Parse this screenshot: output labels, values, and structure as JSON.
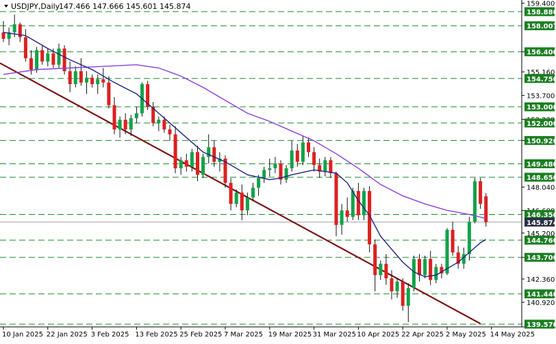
{
  "header": {
    "symbol": "USDJPY,Daily",
    "ohlc": "147.466 147.666 145.601 145.874"
  },
  "colors": {
    "bull": "#11a34a",
    "bear": "#dd2020",
    "wick": "#111111",
    "ma_fast": "#1a237e",
    "ma_slow": "#8a3fd8",
    "trendline": "#7a1414",
    "level_line": "#1a8a2a",
    "label_bg": "#1b7f22",
    "label_text": "#ffffff",
    "current_bg": "#2a2f44"
  },
  "chart_data": {
    "type": "candlestick",
    "y_range": [
      139.4,
      159.6
    ],
    "y_ticks": [
      "159.400",
      "156.400",
      "155.160",
      "153.700",
      "152.220",
      "150.920",
      "148.040",
      "146.600",
      "145.200",
      "143.700",
      "142.360",
      "140.920"
    ],
    "x_labels": [
      "10 Jan 2025",
      "22 Jan 2025",
      "3 Feb 2025",
      "13 Feb 2025",
      "25 Feb 2025",
      "7 Mar 2025",
      "19 Mar 2025",
      "31 Mar 2025",
      "10 Apr 2025",
      "22 Apr 2025",
      "2 May 2025",
      "14 May 2025"
    ],
    "levels": [
      158.88,
      158.007,
      156.4,
      154.75,
      153.0,
      152.0,
      150.92,
      149.48,
      148.65,
      146.35,
      144.76,
      143.7,
      141.44,
      139.57
    ],
    "level_labels": [
      "158.880",
      "158.007",
      "156.400",
      "154.750",
      "153.000",
      "152.000",
      "150.920",
      "149.480",
      "148.650",
      "146.350",
      "144.760",
      "143.700",
      "141.440",
      "139.570"
    ],
    "current_price": 145.874,
    "current_label": "145.874",
    "trendline": [
      [
        0,
        155.7
      ],
      [
        86,
        139.6
      ]
    ],
    "candles": [
      [
        157.6,
        158.3,
        157.0,
        157.2
      ],
      [
        157.2,
        157.9,
        156.8,
        157.6
      ],
      [
        157.6,
        158.7,
        157.3,
        158.1
      ],
      [
        158.1,
        158.2,
        157.0,
        157.3
      ],
      [
        157.3,
        157.8,
        155.8,
        156.0
      ],
      [
        156.0,
        156.5,
        155.0,
        155.3
      ],
      [
        155.3,
        156.7,
        155.1,
        156.5
      ],
      [
        156.5,
        156.8,
        155.6,
        155.8
      ],
      [
        155.8,
        156.6,
        155.5,
        156.3
      ],
      [
        156.3,
        156.6,
        155.4,
        155.6
      ],
      [
        155.6,
        156.9,
        155.4,
        156.6
      ],
      [
        156.6,
        156.8,
        155.0,
        155.2
      ],
      [
        155.2,
        155.8,
        153.9,
        154.4
      ],
      [
        154.4,
        155.5,
        154.2,
        155.2
      ],
      [
        155.2,
        156.0,
        154.3,
        154.5
      ],
      [
        154.5,
        155.2,
        153.8,
        154.8
      ],
      [
        154.8,
        155.0,
        154.2,
        154.4
      ],
      [
        154.4,
        155.0,
        153.8,
        154.7
      ],
      [
        154.7,
        155.4,
        154.2,
        154.5
      ],
      [
        154.5,
        154.9,
        152.9,
        153.1
      ],
      [
        153.1,
        153.6,
        151.3,
        151.6
      ],
      [
        151.6,
        152.4,
        151.1,
        152.2
      ],
      [
        152.2,
        152.6,
        151.3,
        151.6
      ],
      [
        151.6,
        152.5,
        151.2,
        152.3
      ],
      [
        152.3,
        153.0,
        152.0,
        152.6
      ],
      [
        152.6,
        154.5,
        152.4,
        154.4
      ],
      [
        154.4,
        154.6,
        152.8,
        153.0
      ],
      [
        153.0,
        153.3,
        151.8,
        152.0
      ],
      [
        152.0,
        152.4,
        151.5,
        152.2
      ],
      [
        152.2,
        152.4,
        151.4,
        151.6
      ],
      [
        151.6,
        151.9,
        150.9,
        151.3
      ],
      [
        151.3,
        151.8,
        148.9,
        149.2
      ],
      [
        149.2,
        149.9,
        148.8,
        149.7
      ],
      [
        149.7,
        150.1,
        149.0,
        149.3
      ],
      [
        149.3,
        150.4,
        149.0,
        150.2
      ],
      [
        150.2,
        150.6,
        148.4,
        148.8
      ],
      [
        148.8,
        150.1,
        148.6,
        149.9
      ],
      [
        149.9,
        151.3,
        149.5,
        150.5
      ],
      [
        150.5,
        150.9,
        149.3,
        149.6
      ],
      [
        149.6,
        150.2,
        149.0,
        149.8
      ],
      [
        149.8,
        150.0,
        148.0,
        148.3
      ],
      [
        148.3,
        148.6,
        146.6,
        147.0
      ],
      [
        147.0,
        147.9,
        146.8,
        147.7
      ],
      [
        147.7,
        148.2,
        146.0,
        146.6
      ],
      [
        146.6,
        147.7,
        146.3,
        147.4
      ],
      [
        147.4,
        148.3,
        147.2,
        148.0
      ],
      [
        148.0,
        148.8,
        147.5,
        148.6
      ],
      [
        148.6,
        149.3,
        148.3,
        149.1
      ],
      [
        149.1,
        149.8,
        148.7,
        149.2
      ],
      [
        149.2,
        149.9,
        148.9,
        149.5
      ],
      [
        149.5,
        149.7,
        148.2,
        148.5
      ],
      [
        148.5,
        149.4,
        148.3,
        149.2
      ],
      [
        149.2,
        150.9,
        149.0,
        150.3
      ],
      [
        150.3,
        150.7,
        149.3,
        149.6
      ],
      [
        149.6,
        151.2,
        149.4,
        150.8
      ],
      [
        150.8,
        151.1,
        149.9,
        150.2
      ],
      [
        150.2,
        150.5,
        149.0,
        149.4
      ],
      [
        149.4,
        149.8,
        148.6,
        149.0
      ],
      [
        149.0,
        149.9,
        148.7,
        149.7
      ],
      [
        149.7,
        149.9,
        148.6,
        148.9
      ],
      [
        148.9,
        149.0,
        145.0,
        145.7
      ],
      [
        145.7,
        147.0,
        145.1,
        146.6
      ],
      [
        146.6,
        147.4,
        145.9,
        146.2
      ],
      [
        146.2,
        148.0,
        146.0,
        147.8
      ],
      [
        147.8,
        148.3,
        146.0,
        146.3
      ],
      [
        146.3,
        148.0,
        146.0,
        147.8
      ],
      [
        147.8,
        148.1,
        144.0,
        144.5
      ],
      [
        144.5,
        144.8,
        141.6,
        142.6
      ],
      [
        142.6,
        143.5,
        142.3,
        143.3
      ],
      [
        143.3,
        143.9,
        142.0,
        142.4
      ],
      [
        142.4,
        142.9,
        141.1,
        141.6
      ],
      [
        141.6,
        142.4,
        141.2,
        142.2
      ],
      [
        142.2,
        142.4,
        140.4,
        140.7
      ],
      [
        140.7,
        142.1,
        139.7,
        141.8
      ],
      [
        141.8,
        143.8,
        141.6,
        143.6
      ],
      [
        143.6,
        143.9,
        142.2,
        142.6
      ],
      [
        142.6,
        143.8,
        142.4,
        143.6
      ],
      [
        143.6,
        144.1,
        142.0,
        142.3
      ],
      [
        142.3,
        143.3,
        142.1,
        143.1
      ],
      [
        143.1,
        143.3,
        142.4,
        142.7
      ],
      [
        142.7,
        145.5,
        142.6,
        145.4
      ],
      [
        145.4,
        145.9,
        143.8,
        144.0
      ],
      [
        144.0,
        144.4,
        143.0,
        143.3
      ],
      [
        143.3,
        144.3,
        143.0,
        143.9
      ],
      [
        143.9,
        146.2,
        143.5,
        145.9
      ],
      [
        145.9,
        148.6,
        145.8,
        148.4
      ],
      [
        148.4,
        148.6,
        146.7,
        147.0
      ],
      [
        147.466,
        147.666,
        145.601,
        145.874
      ]
    ],
    "ma_fast": [
      [
        0,
        157.6
      ],
      [
        4,
        157.4
      ],
      [
        8,
        156.6
      ],
      [
        12,
        155.9
      ],
      [
        16,
        155.3
      ],
      [
        20,
        154.5
      ],
      [
        24,
        153.8
      ],
      [
        28,
        152.6
      ],
      [
        32,
        151.4
      ],
      [
        36,
        150.2
      ],
      [
        40,
        149.6
      ],
      [
        44,
        148.8
      ],
      [
        48,
        148.5
      ],
      [
        50,
        148.6
      ],
      [
        52,
        148.8
      ],
      [
        56,
        149.1
      ],
      [
        60,
        148.9
      ],
      [
        62,
        148.3
      ],
      [
        64,
        147.2
      ],
      [
        66,
        146.3
      ],
      [
        68,
        145.0
      ],
      [
        70,
        144.2
      ],
      [
        72,
        143.4
      ],
      [
        74,
        142.8
      ],
      [
        76,
        142.5
      ],
      [
        78,
        142.6
      ],
      [
        80,
        143.0
      ],
      [
        82,
        143.4
      ],
      [
        84,
        144.0
      ],
      [
        86,
        144.6
      ],
      [
        87,
        144.8
      ]
    ],
    "ma_slow": [
      [
        0,
        155.0
      ],
      [
        6,
        155.3
      ],
      [
        12,
        155.4
      ],
      [
        18,
        155.5
      ],
      [
        24,
        155.6
      ],
      [
        28,
        155.4
      ],
      [
        32,
        154.9
      ],
      [
        36,
        154.2
      ],
      [
        40,
        153.4
      ],
      [
        44,
        152.6
      ],
      [
        48,
        152.1
      ],
      [
        52,
        151.5
      ],
      [
        56,
        150.9
      ],
      [
        60,
        150.1
      ],
      [
        64,
        149.2
      ],
      [
        68,
        148.2
      ],
      [
        72,
        147.5
      ],
      [
        76,
        147.0
      ],
      [
        80,
        146.6
      ],
      [
        84,
        146.35
      ],
      [
        87,
        146.1
      ]
    ]
  }
}
